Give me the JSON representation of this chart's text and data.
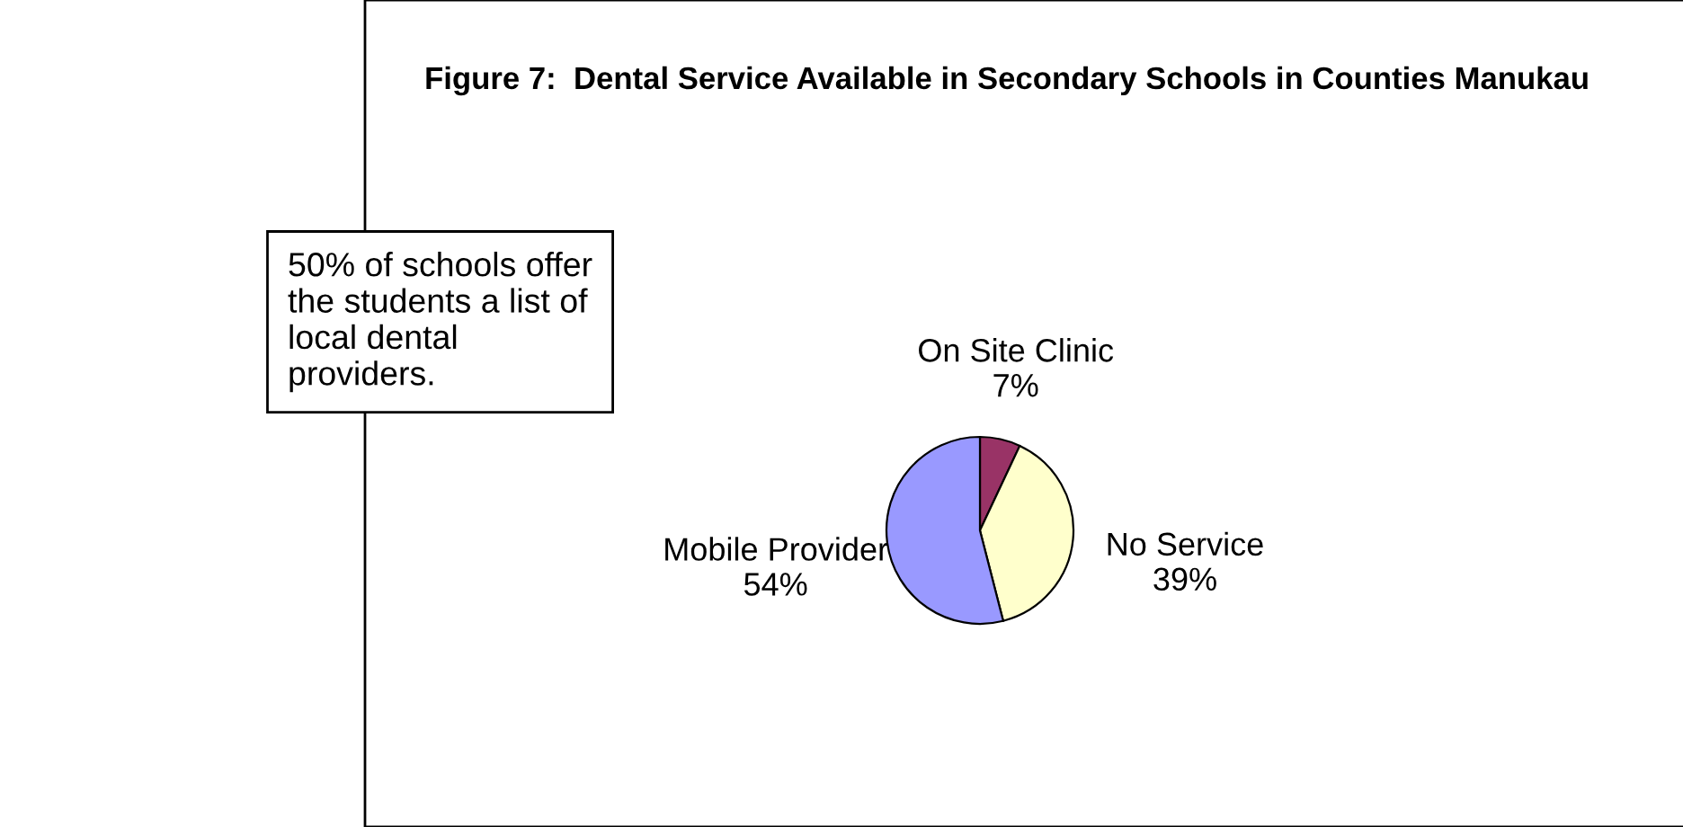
{
  "chart_data": {
    "type": "pie",
    "title": "Figure 7:  Dental Service Available in Secondary Schools in Counties Manukau",
    "categories": [
      "On Site Clinic",
      "No Service",
      "Mobile Provider"
    ],
    "values": [
      7,
      39,
      54
    ],
    "value_labels": [
      "7%",
      "39%",
      "54%"
    ],
    "colors": [
      "#993366",
      "#ffffcc",
      "#9999ff"
    ],
    "annotations": [
      "50% of schools offer the students a list of local dental providers."
    ]
  }
}
